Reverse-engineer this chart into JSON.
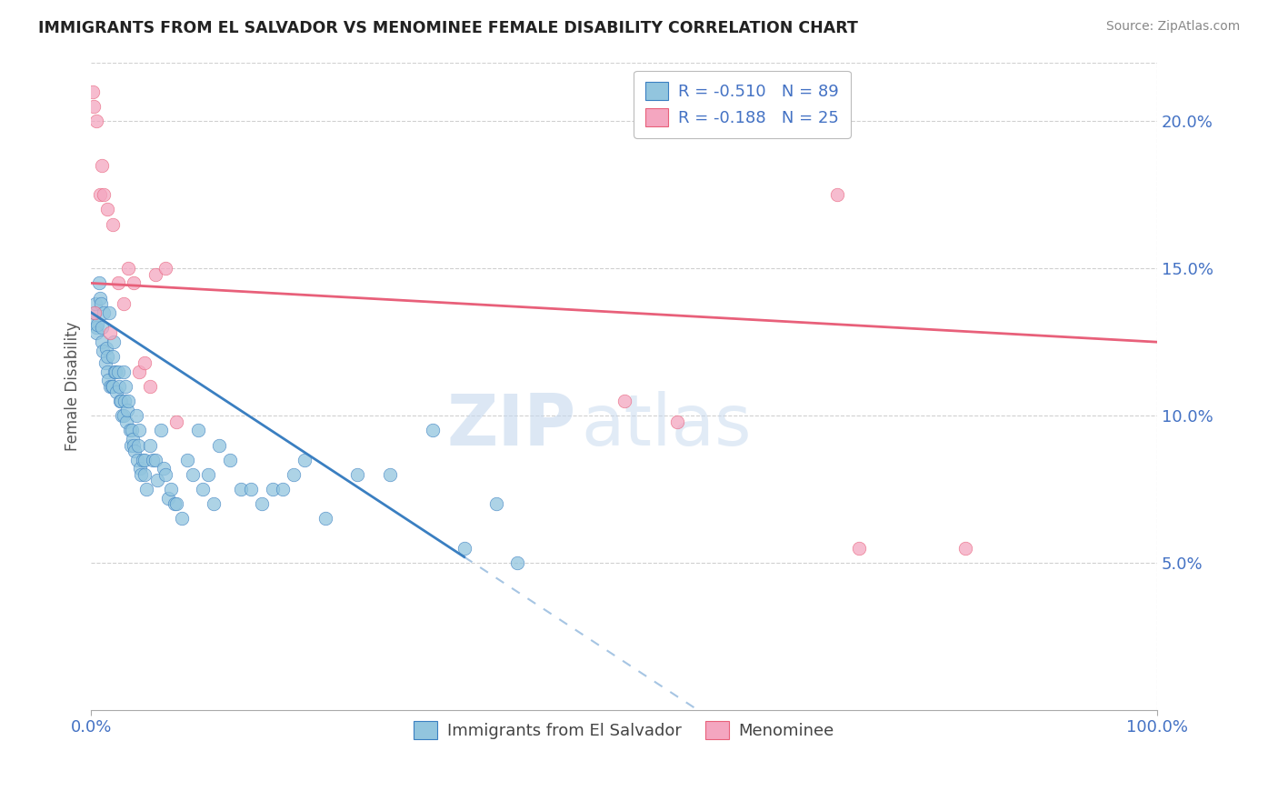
{
  "title": "IMMIGRANTS FROM EL SALVADOR VS MENOMINEE FEMALE DISABILITY CORRELATION CHART",
  "source": "Source: ZipAtlas.com",
  "ylabel": "Female Disability",
  "legend1_label": "R = -0.510   N = 89",
  "legend2_label": "R = -0.188   N = 25",
  "legend_bottom1": "Immigrants from El Salvador",
  "legend_bottom2": "Menominee",
  "blue_color": "#92c5de",
  "pink_color": "#f4a6c0",
  "blue_line_color": "#3a7fc1",
  "pink_line_color": "#e8607a",
  "axis_label_color": "#4472c4",
  "grid_color": "#d0d0d0",
  "watermark_color": "#c5d8ee",
  "blue_dots_x": [
    0.2,
    0.3,
    0.4,
    0.5,
    0.5,
    0.6,
    0.7,
    0.8,
    0.9,
    1.0,
    1.0,
    1.1,
    1.2,
    1.3,
    1.4,
    1.5,
    1.5,
    1.6,
    1.7,
    1.8,
    1.9,
    2.0,
    2.0,
    2.1,
    2.2,
    2.3,
    2.4,
    2.5,
    2.6,
    2.7,
    2.8,
    2.9,
    3.0,
    3.0,
    3.1,
    3.2,
    3.3,
    3.4,
    3.5,
    3.6,
    3.7,
    3.8,
    3.9,
    4.0,
    4.1,
    4.2,
    4.3,
    4.4,
    4.5,
    4.6,
    4.7,
    4.8,
    5.0,
    5.0,
    5.2,
    5.5,
    5.8,
    6.0,
    6.2,
    6.5,
    6.8,
    7.0,
    7.2,
    7.5,
    7.8,
    8.0,
    8.5,
    9.0,
    9.5,
    10.0,
    10.5,
    11.0,
    11.5,
    12.0,
    13.0,
    14.0,
    15.0,
    16.0,
    17.0,
    18.0,
    19.0,
    20.0,
    22.0,
    25.0,
    28.0,
    32.0,
    35.0,
    38.0,
    40.0
  ],
  "blue_dots_y": [
    13.2,
    13.5,
    13.8,
    13.0,
    12.8,
    13.1,
    14.5,
    14.0,
    13.8,
    13.0,
    12.5,
    12.2,
    13.5,
    11.8,
    12.3,
    12.0,
    11.5,
    11.2,
    13.5,
    11.0,
    11.0,
    11.0,
    12.0,
    12.5,
    11.5,
    11.5,
    10.8,
    11.5,
    11.0,
    10.5,
    10.5,
    10.0,
    10.0,
    11.5,
    10.5,
    11.0,
    9.8,
    10.2,
    10.5,
    9.5,
    9.0,
    9.5,
    9.2,
    9.0,
    8.8,
    10.0,
    8.5,
    9.0,
    9.5,
    8.2,
    8.0,
    8.5,
    8.0,
    8.5,
    7.5,
    9.0,
    8.5,
    8.5,
    7.8,
    9.5,
    8.2,
    8.0,
    7.2,
    7.5,
    7.0,
    7.0,
    6.5,
    8.5,
    8.0,
    9.5,
    7.5,
    8.0,
    7.0,
    9.0,
    8.5,
    7.5,
    7.5,
    7.0,
    7.5,
    7.5,
    8.0,
    8.5,
    6.5,
    8.0,
    8.0,
    9.5,
    5.5,
    7.0,
    5.0
  ],
  "pink_dots_x": [
    0.1,
    0.2,
    0.3,
    0.5,
    0.8,
    1.0,
    1.2,
    1.5,
    1.8,
    2.0,
    2.5,
    3.0,
    3.5,
    4.0,
    4.5,
    5.0,
    5.5,
    6.0,
    7.0,
    8.0,
    50.0,
    55.0,
    70.0,
    72.0,
    82.0
  ],
  "pink_dots_y": [
    21.0,
    20.5,
    13.5,
    20.0,
    17.5,
    18.5,
    17.5,
    17.0,
    12.8,
    16.5,
    14.5,
    13.8,
    15.0,
    14.5,
    11.5,
    11.8,
    11.0,
    14.8,
    15.0,
    9.8,
    10.5,
    9.8,
    17.5,
    5.5,
    5.5
  ],
  "xlim": [
    0,
    100
  ],
  "ylim": [
    0,
    22
  ],
  "yticks": [
    5.0,
    10.0,
    15.0,
    20.0
  ],
  "blue_trend_x1": 0.0,
  "blue_trend_y1": 13.5,
  "blue_trend_x2": 35.0,
  "blue_trend_y2": 5.2,
  "blue_trend_dash_x2": 72.0,
  "pink_trend_x1": 0.0,
  "pink_trend_y1": 14.5,
  "pink_trend_x2": 100.0,
  "pink_trend_y2": 12.5
}
